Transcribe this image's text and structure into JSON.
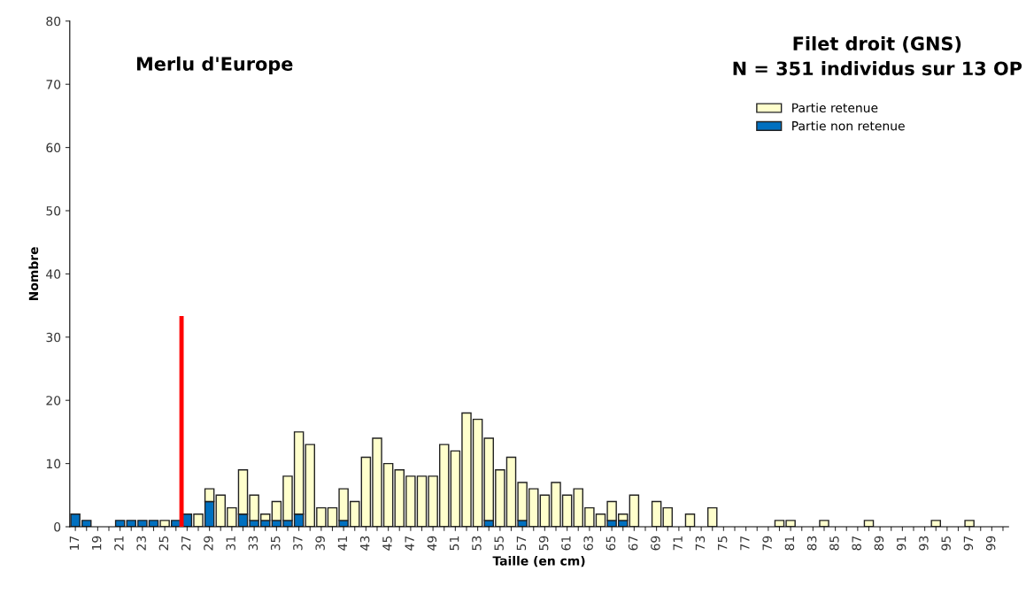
{
  "chart_data": {
    "type": "bar",
    "stacked": true,
    "xlabel": "Taille (en cm)",
    "ylabel": "Nombre",
    "annotations": [
      "Merlu d'Europe",
      "Filet droit (GNS)\nN = 351 individus sur 13 OP"
    ],
    "x": [
      17,
      18,
      19,
      20,
      21,
      22,
      23,
      24,
      25,
      26,
      27,
      28,
      29,
      30,
      31,
      32,
      33,
      34,
      35,
      36,
      37,
      38,
      39,
      40,
      41,
      42,
      43,
      44,
      45,
      46,
      47,
      48,
      49,
      50,
      51,
      52,
      53,
      54,
      55,
      56,
      57,
      58,
      59,
      60,
      61,
      62,
      63,
      64,
      65,
      66,
      67,
      68,
      69,
      70,
      71,
      72,
      73,
      74,
      75,
      76,
      77,
      78,
      79,
      80,
      81,
      82,
      83,
      84,
      85,
      86,
      87,
      88,
      89,
      90,
      91,
      92,
      93,
      94,
      95,
      96,
      97,
      98,
      99,
      100
    ],
    "xlim": [
      16.5,
      100.5
    ],
    "xticks": [
      17,
      {
        "value": 18,
        "label": null
      },
      19,
      {
        "value": 20,
        "label": null
      },
      21,
      {
        "value": 22,
        "label": null
      },
      23,
      {
        "value": 24,
        "label": null
      },
      25,
      {
        "value": 26,
        "label": null
      },
      27,
      {
        "value": 28,
        "label": null
      },
      29,
      {
        "value": 30,
        "label": null
      },
      31,
      {
        "value": 32,
        "label": null
      },
      33,
      {
        "value": 34,
        "label": null
      },
      35,
      {
        "value": 36,
        "label": null
      },
      37,
      {
        "value": 38,
        "label": null
      },
      39,
      {
        "value": 40,
        "label": null
      },
      41,
      {
        "value": 42,
        "label": null
      },
      43,
      {
        "value": 44,
        "label": null
      },
      45,
      {
        "value": 46,
        "label": null
      },
      47,
      {
        "value": 48,
        "label": null
      },
      49,
      {
        "value": 50,
        "label": null
      },
      51,
      {
        "value": 52,
        "label": null
      },
      53,
      {
        "value": 54,
        "label": null
      },
      55,
      {
        "value": 56,
        "label": null
      },
      57,
      {
        "value": 58,
        "label": null
      },
      59,
      {
        "value": 60,
        "label": null
      },
      61,
      {
        "value": 62,
        "label": null
      },
      63,
      {
        "value": 64,
        "label": null
      },
      65,
      {
        "value": 66,
        "label": null
      },
      67,
      {
        "value": 68,
        "label": null
      },
      69,
      {
        "value": 70,
        "label": null
      },
      71,
      {
        "value": 72,
        "label": null
      },
      73,
      {
        "value": 74,
        "label": null
      },
      75,
      {
        "value": 76,
        "label": null
      },
      77,
      {
        "value": 78,
        "label": null
      },
      79,
      {
        "value": 80,
        "label": null
      },
      81,
      {
        "value": 82,
        "label": null
      },
      83,
      {
        "value": 84,
        "label": null
      },
      85,
      {
        "value": 86,
        "label": null
      },
      87,
      {
        "value": 88,
        "label": null
      },
      89,
      {
        "value": 90,
        "label": null
      },
      91,
      {
        "value": 92,
        "label": null
      },
      93,
      {
        "value": 94,
        "label": null
      },
      95,
      {
        "value": 96,
        "label": null
      },
      97,
      {
        "value": 98,
        "label": null
      },
      99,
      {
        "value": 100,
        "label": null
      }
    ],
    "ylim": [
      0,
      80
    ],
    "yticks": [
      0,
      10,
      20,
      30,
      40,
      50,
      60,
      70,
      80
    ],
    "grid": false,
    "legend": "top right",
    "series": [
      {
        "name": "Partie non retenue",
        "color": "#0070c0",
        "values": [
          2,
          1,
          0,
          0,
          1,
          1,
          1,
          1,
          0,
          1,
          2,
          0,
          4,
          0,
          0,
          2,
          1,
          1,
          1,
          1,
          2,
          0,
          0,
          0,
          1,
          0,
          0,
          0,
          0,
          0,
          0,
          0,
          0,
          0,
          0,
          0,
          0,
          1,
          0,
          0,
          1,
          0,
          0,
          0,
          0,
          0,
          0,
          0,
          1,
          1,
          0,
          0,
          0,
          0,
          0,
          0,
          0,
          0,
          0,
          0,
          0,
          0,
          0,
          0,
          0,
          0,
          0,
          0,
          0,
          0,
          0,
          0,
          0,
          0,
          0,
          0,
          0,
          0,
          0,
          0,
          0,
          0,
          0,
          0
        ]
      },
      {
        "name": "Partie retenue",
        "color": "#ffffcc",
        "values": [
          0,
          0,
          0,
          0,
          0,
          0,
          0,
          0,
          1,
          0,
          0,
          2,
          2,
          5,
          3,
          7,
          4,
          1,
          3,
          7,
          13,
          13,
          3,
          3,
          5,
          4,
          11,
          14,
          10,
          9,
          8,
          8,
          8,
          13,
          12,
          18,
          17,
          13,
          9,
          11,
          6,
          6,
          5,
          7,
          5,
          6,
          3,
          2,
          3,
          1,
          5,
          0,
          4,
          3,
          0,
          2,
          0,
          3,
          0,
          0,
          0,
          0,
          0,
          1,
          1,
          0,
          0,
          1,
          0,
          0,
          0,
          1,
          0,
          0,
          0,
          0,
          0,
          1,
          0,
          0,
          1,
          0,
          0,
          0
        ]
      },
      {
        "type": "line",
        "color": "#ff0000",
        "x": [
          26.5,
          26.5
        ],
        "values": [
          0,
          33
        ]
      }
    ]
  }
}
